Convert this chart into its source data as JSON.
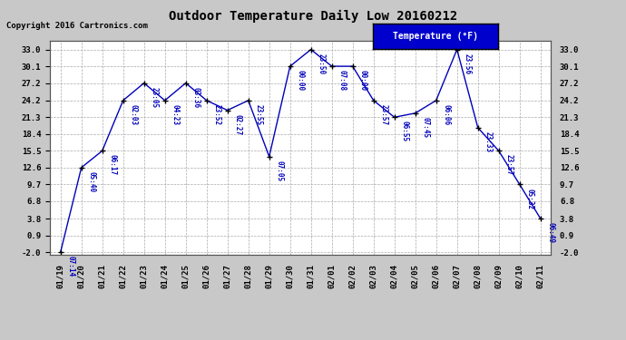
{
  "title": "Outdoor Temperature Daily Low 20160212",
  "copyright": "Copyright 2016 Cartronics.com",
  "legend_label": "Temperature (°F)",
  "dates": [
    "01/19",
    "01/20",
    "01/21",
    "01/22",
    "01/23",
    "01/24",
    "01/25",
    "01/26",
    "01/27",
    "01/28",
    "01/29",
    "01/30",
    "01/31",
    "02/01",
    "02/02",
    "02/03",
    "02/04",
    "02/05",
    "02/06",
    "02/07",
    "02/08",
    "02/09",
    "02/10",
    "02/11"
  ],
  "values": [
    -2.0,
    12.6,
    15.5,
    24.2,
    27.2,
    24.2,
    27.2,
    24.2,
    22.5,
    24.2,
    14.5,
    30.1,
    33.0,
    30.1,
    30.1,
    24.2,
    21.3,
    22.0,
    24.2,
    33.0,
    19.5,
    15.5,
    9.7,
    3.8
  ],
  "timestamps": [
    "07:14",
    "05:40",
    "06:17",
    "02:03",
    "23:05",
    "04:23",
    "03:36",
    "23:52",
    "02:27",
    "23:55",
    "07:05",
    "00:00",
    "23:50",
    "07:08",
    "00:00",
    "23:57",
    "06:55",
    "07:45",
    "06:06",
    "23:56",
    "23:33",
    "23:57",
    "05:32",
    "06:49"
  ],
  "ylim": [
    -2.0,
    33.0
  ],
  "yticks": [
    -2.0,
    0.9,
    3.8,
    6.8,
    9.7,
    12.6,
    15.5,
    18.4,
    21.3,
    24.2,
    27.2,
    30.1,
    33.0
  ],
  "line_color": "#0000bb",
  "marker_color": "#000000",
  "bg_color": "#c8c8c8",
  "plot_bg_color": "#ffffff",
  "grid_color": "#aaaaaa",
  "text_color": "#0000bb",
  "title_color": "#000000",
  "copyright_color": "#000000",
  "legend_bg": "#0000cc",
  "legend_text": "#ffffff"
}
